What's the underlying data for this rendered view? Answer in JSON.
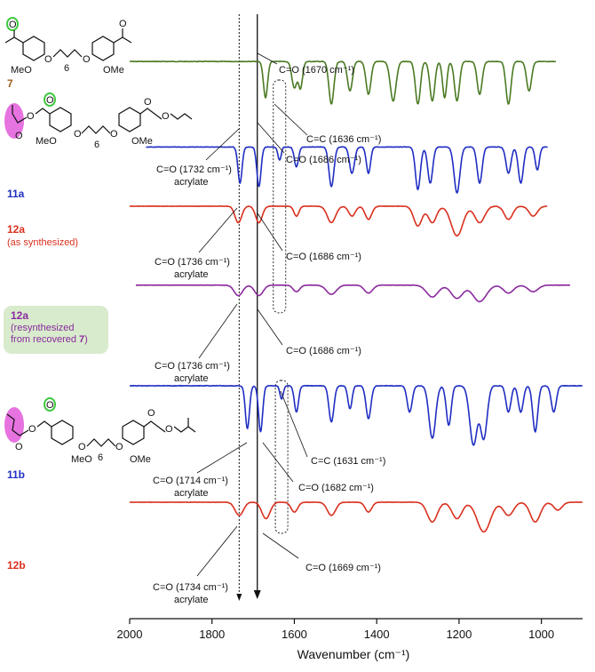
{
  "chart_data": {
    "type": "line",
    "xlabel": "Wavenumber (cm⁻¹)",
    "xlim": [
      2000,
      900
    ],
    "xticks": [
      "2000",
      "1800",
      "1600",
      "1400",
      "1200",
      "1000"
    ],
    "xtick_values": [
      2000,
      1800,
      1600,
      1400,
      1200,
      1000
    ],
    "series": [
      {
        "name": "7",
        "note": "",
        "color": "#4a7a22",
        "baseline": 0.08,
        "noise": 0.6,
        "x_range": [
          2000,
          965
        ],
        "bands": [
          [
            1670,
            0.055,
            5
          ],
          [
            1600,
            0.04,
            6
          ],
          [
            1585,
            0.04,
            5
          ],
          [
            1510,
            0.065,
            6
          ],
          [
            1465,
            0.045,
            6
          ],
          [
            1420,
            0.05,
            6
          ],
          [
            1360,
            0.06,
            7
          ],
          [
            1300,
            0.065,
            6
          ],
          [
            1265,
            0.06,
            6
          ],
          [
            1235,
            0.055,
            5
          ],
          [
            1205,
            0.06,
            6
          ],
          [
            1150,
            0.05,
            6
          ],
          [
            1080,
            0.065,
            6
          ],
          [
            1030,
            0.045,
            6
          ]
        ]
      },
      {
        "name": "11a",
        "note": "",
        "color": "#1f2ec2",
        "baseline": 0.21,
        "noise": 0.5,
        "x_range": [
          1960,
          985
        ],
        "bands": [
          [
            1732,
            0.055,
            5
          ],
          [
            1686,
            0.06,
            5
          ],
          [
            1636,
            0.02,
            4
          ],
          [
            1595,
            0.03,
            5
          ],
          [
            1510,
            0.06,
            6
          ],
          [
            1460,
            0.04,
            6
          ],
          [
            1420,
            0.04,
            5
          ],
          [
            1300,
            0.065,
            6
          ],
          [
            1270,
            0.055,
            6
          ],
          [
            1205,
            0.07,
            7
          ],
          [
            1150,
            0.055,
            6
          ],
          [
            1080,
            0.04,
            6
          ],
          [
            1050,
            0.055,
            6
          ],
          [
            1010,
            0.035,
            5
          ]
        ]
      },
      {
        "name": "12a",
        "note": "(as synthesized)",
        "color": "#d9301e",
        "baseline": 0.3,
        "noise": 0.4,
        "x_range": [
          2000,
          985
        ],
        "bands": [
          [
            1736,
            0.025,
            8
          ],
          [
            1686,
            0.025,
            8
          ],
          [
            1595,
            0.015,
            6
          ],
          [
            1510,
            0.025,
            10
          ],
          [
            1460,
            0.015,
            8
          ],
          [
            1420,
            0.02,
            8
          ],
          [
            1300,
            0.03,
            10
          ],
          [
            1265,
            0.025,
            10
          ],
          [
            1205,
            0.045,
            14
          ],
          [
            1150,
            0.025,
            12
          ],
          [
            1080,
            0.02,
            10
          ],
          [
            1020,
            0.015,
            10
          ]
        ]
      },
      {
        "name": "12a",
        "note": "(resynthesized from recovered 7)",
        "color": "#8a2a9e",
        "baseline": 0.42,
        "noise": 0.3,
        "x_range": [
          1985,
          930
        ],
        "bands": [
          [
            1736,
            0.016,
            10
          ],
          [
            1686,
            0.016,
            10
          ],
          [
            1595,
            0.01,
            8
          ],
          [
            1510,
            0.014,
            12
          ],
          [
            1420,
            0.012,
            10
          ],
          [
            1265,
            0.018,
            14
          ],
          [
            1205,
            0.02,
            14
          ],
          [
            1150,
            0.025,
            16
          ],
          [
            1080,
            0.012,
            12
          ],
          [
            1020,
            0.01,
            12
          ]
        ]
      },
      {
        "name": "11b",
        "note": "",
        "color": "#1f2ec2",
        "baseline": 0.573,
        "noise": 0.6,
        "x_range": [
          2000,
          900
        ],
        "bands": [
          [
            1714,
            0.065,
            5
          ],
          [
            1682,
            0.07,
            5
          ],
          [
            1631,
            0.02,
            4
          ],
          [
            1595,
            0.04,
            5
          ],
          [
            1510,
            0.055,
            6
          ],
          [
            1465,
            0.035,
            5
          ],
          [
            1420,
            0.05,
            6
          ],
          [
            1320,
            0.04,
            6
          ],
          [
            1265,
            0.08,
            8
          ],
          [
            1225,
            0.06,
            6
          ],
          [
            1165,
            0.09,
            9
          ],
          [
            1140,
            0.08,
            8
          ],
          [
            1080,
            0.04,
            6
          ],
          [
            1050,
            0.04,
            6
          ],
          [
            1015,
            0.07,
            6
          ],
          [
            970,
            0.04,
            6
          ]
        ]
      },
      {
        "name": "12b",
        "note": "",
        "color": "#d9301e",
        "baseline": 0.75,
        "noise": 0.4,
        "x_range": [
          2000,
          900
        ],
        "bands": [
          [
            1734,
            0.02,
            10
          ],
          [
            1669,
            0.025,
            10
          ],
          [
            1600,
            0.015,
            8
          ],
          [
            1510,
            0.02,
            10
          ],
          [
            1420,
            0.015,
            8
          ],
          [
            1265,
            0.03,
            12
          ],
          [
            1205,
            0.025,
            12
          ],
          [
            1140,
            0.045,
            16
          ],
          [
            1080,
            0.02,
            12
          ],
          [
            1015,
            0.03,
            12
          ],
          [
            960,
            0.012,
            10
          ]
        ]
      }
    ],
    "annotations": [
      {
        "series": "7",
        "band": "C=O",
        "wavenumber": 1670,
        "text": "C=O (1670 cm⁻¹)",
        "sub": ""
      },
      {
        "series": "11a",
        "band": "C=C",
        "wavenumber": 1636,
        "text": "C=C (1636 cm⁻¹)",
        "sub": ""
      },
      {
        "series": "11a",
        "band": "C=O",
        "wavenumber": 1686,
        "text": "C=O (1686 cm⁻¹)",
        "sub": ""
      },
      {
        "series": "11a",
        "band": "C=O",
        "wavenumber": 1732,
        "text": "C=O (1732 cm⁻¹)",
        "sub": "acrylate"
      },
      {
        "series": "12a",
        "band": "C=O",
        "wavenumber": 1736,
        "text": "C=O (1736 cm⁻¹)",
        "sub": "acrylate"
      },
      {
        "series": "12a",
        "band": "C=O",
        "wavenumber": 1686,
        "text": "C=O (1686 cm⁻¹)",
        "sub": ""
      },
      {
        "series": "12a-resynth",
        "band": "C=O",
        "wavenumber": 1736,
        "text": "C=O (1736 cm⁻¹)",
        "sub": "acrylate"
      },
      {
        "series": "12a-resynth",
        "band": "C=O",
        "wavenumber": 1686,
        "text": "C=O (1686 cm⁻¹)",
        "sub": ""
      },
      {
        "series": "11b",
        "band": "C=C",
        "wavenumber": 1631,
        "text": "C=C (1631 cm⁻¹)",
        "sub": ""
      },
      {
        "series": "11b",
        "band": "C=O",
        "wavenumber": 1682,
        "text": "C=O (1682 cm⁻¹)",
        "sub": ""
      },
      {
        "series": "11b",
        "band": "C=O",
        "wavenumber": 1714,
        "text": "C=O (1714 cm⁻¹)",
        "sub": "acrylate"
      },
      {
        "series": "12b",
        "band": "C=O",
        "wavenumber": 1669,
        "text": "C=O (1669 cm⁻¹)",
        "sub": ""
      },
      {
        "series": "12b",
        "band": "C=O",
        "wavenumber": 1734,
        "text": "C=O (1734 cm⁻¹)",
        "sub": "acrylate"
      }
    ],
    "guides": [
      {
        "style": "dotted",
        "wavenumber": 1734
      },
      {
        "style": "solid-arrow",
        "wavenumber": 1690
      }
    ]
  },
  "labels": {
    "compounds": [
      {
        "id": "7",
        "color": "#a0601c"
      },
      {
        "id": "11a",
        "color": "#1f2ec2"
      },
      {
        "id": "12a",
        "color": "#d9301e"
      },
      {
        "id": "12a",
        "color": "#8a2a9e"
      },
      {
        "id": "11b",
        "color": "#1f2ec2"
      },
      {
        "id": "12b",
        "color": "#d9301e"
      }
    ],
    "note_12a": "(as synthesized)",
    "note_12a_resynth_1": "(resynthesized",
    "note_12a_resynth_2": "from recovered",
    "note_12a_resynth_3": "7",
    "note_12a_resynth_end": ")",
    "badge_color": "#d8ebcd",
    "highlight_pink": "#e673e0",
    "highlight_green": "#3ec93e"
  },
  "structures": {
    "atoms": [
      "O",
      "MeO",
      "O",
      "O",
      "6",
      "OMe",
      "O"
    ],
    "atoms_11a": [
      "O",
      "O",
      "O",
      "MeO",
      "O",
      "O",
      "6",
      "OMe",
      "O",
      "O"
    ],
    "atoms_11b": [
      "O",
      "O",
      "O",
      "MeO",
      "O",
      "O",
      "6",
      "OMe",
      "O",
      "O"
    ]
  }
}
